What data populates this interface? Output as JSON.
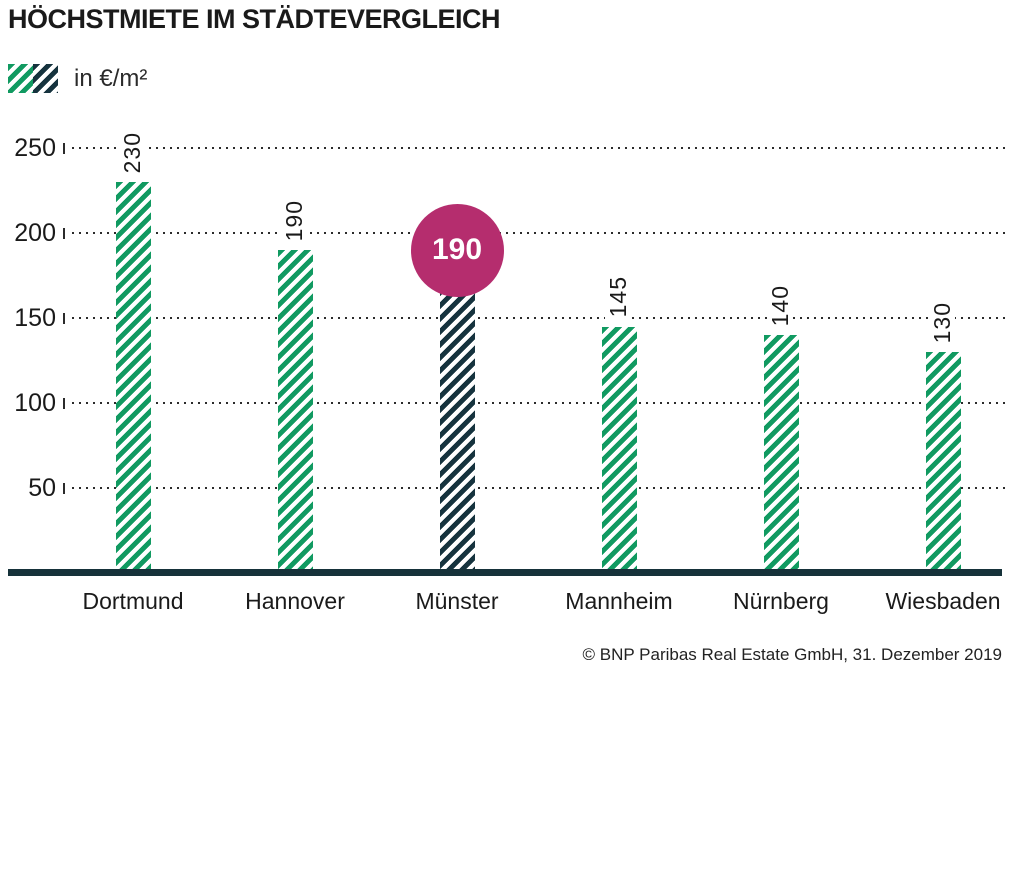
{
  "title": "HÖCHSTMIETE IM STÄDTEVERGLEICH",
  "legend": {
    "label": "in €/m²"
  },
  "source": "© BNP Paribas Real Estate GmbH, 31. Dezember 2019",
  "colors": {
    "green": "#119a61",
    "dark": "#16333e",
    "badge": "#b52d6e",
    "baseline": "#16323a"
  },
  "chart_data": {
    "type": "bar",
    "title": "HÖCHSTMIETE IM STÄDTEVERGLEICH",
    "unit_label": "in €/m²",
    "categories": [
      "Dortmund",
      "Hannover",
      "Münster",
      "Mannheim",
      "Nürnberg",
      "Wiesbaden"
    ],
    "values": [
      230,
      190,
      190,
      145,
      140,
      130
    ],
    "bar_styles": [
      "green",
      "green",
      "dark",
      "green",
      "green",
      "green"
    ],
    "highlight_index": 2,
    "highlight_badge_value": "190",
    "yticks": [
      50,
      100,
      150,
      200,
      250
    ],
    "ylim": [
      0,
      250
    ],
    "grid": "dotted-horizontal",
    "legend_position": "top-left",
    "source": "© BNP Paribas Real Estate GmbH, 31. Dezember 2019"
  }
}
